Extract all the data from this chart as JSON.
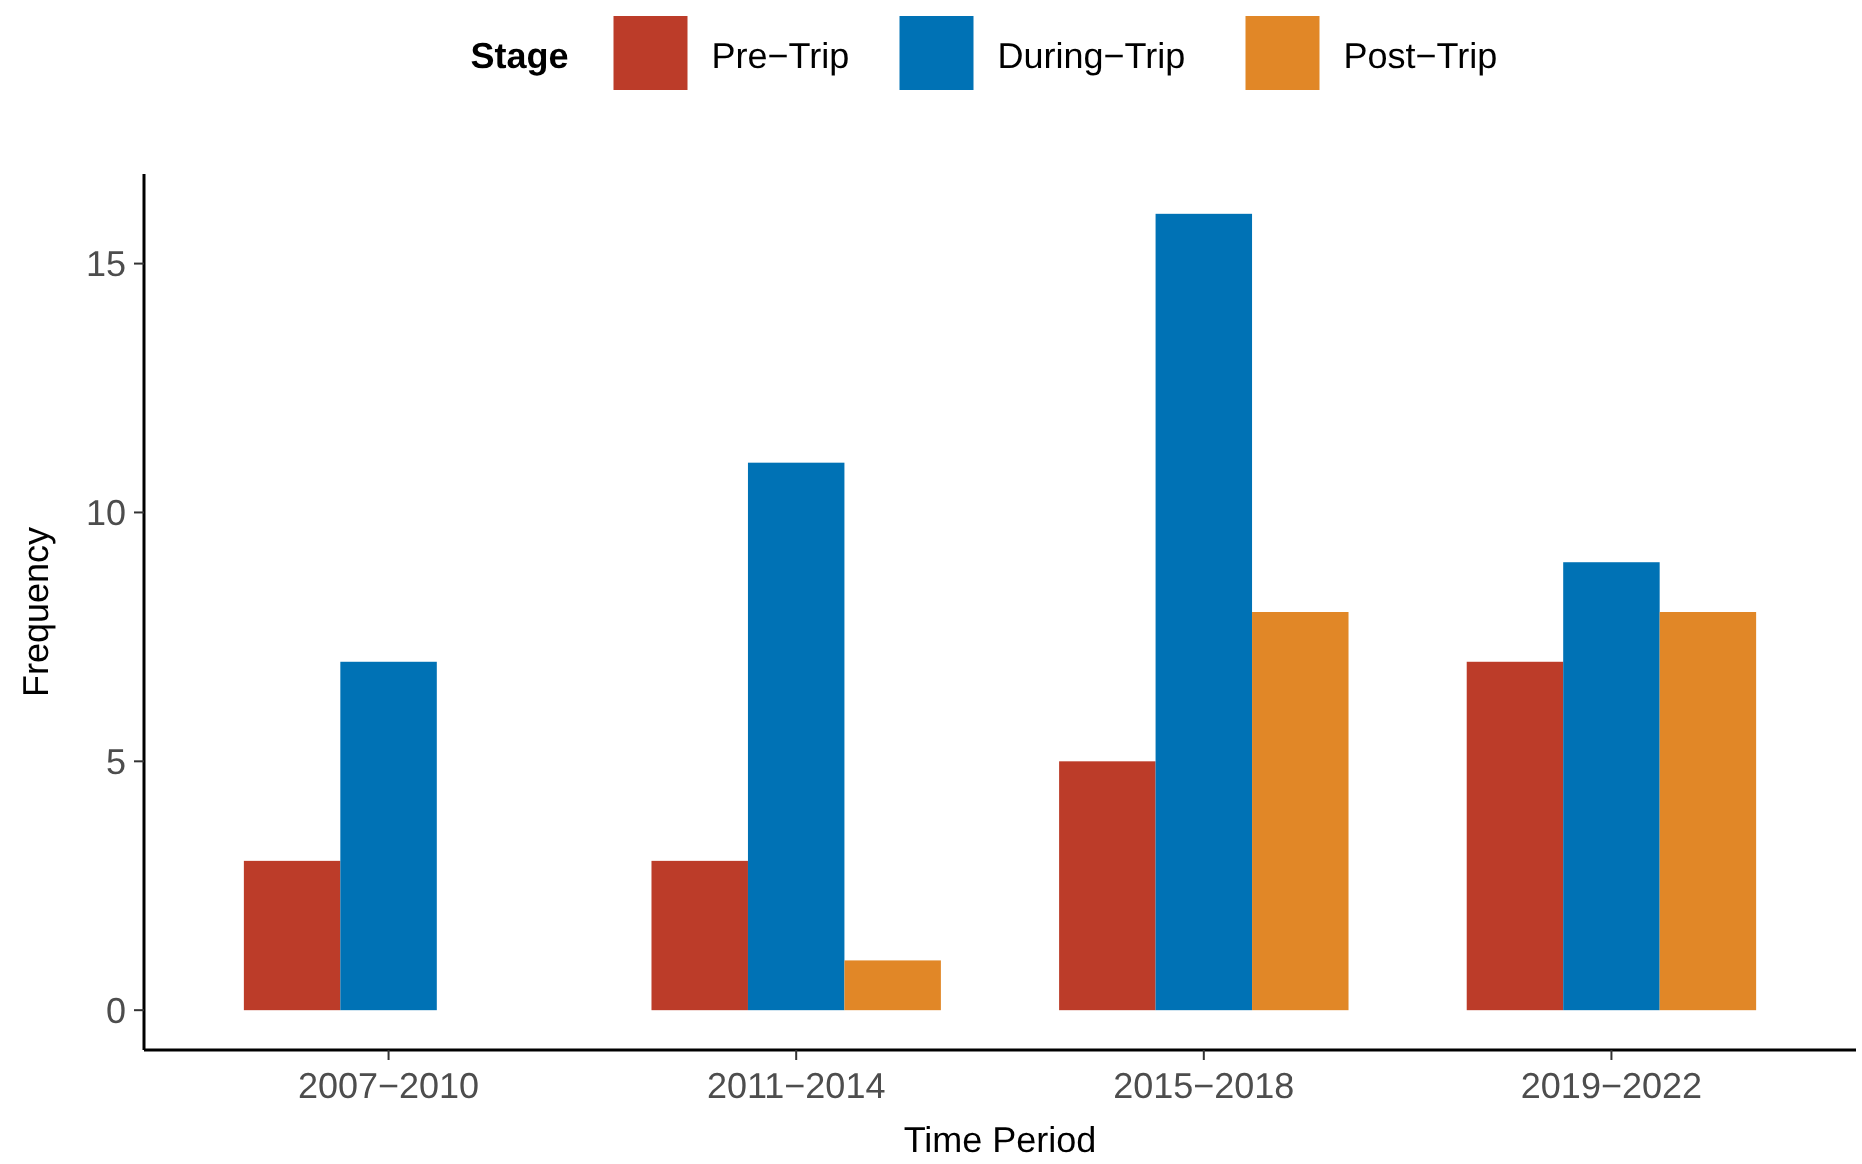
{
  "chart_data": {
    "type": "bar",
    "xlabel": "Time Period",
    "ylabel": "Frequency",
    "legend_title": "Stage",
    "legend": "top",
    "grid": false,
    "categories": [
      "2007−2010",
      "2011−2014",
      "2015−2018",
      "2019−2022"
    ],
    "series": [
      {
        "name": "Pre−Trip",
        "color": "#bc3c29",
        "values": [
          3,
          3,
          5,
          7
        ]
      },
      {
        "name": "During−Trip",
        "color": "#0072b5",
        "values": [
          7,
          11,
          16,
          9
        ]
      },
      {
        "name": "Post−Trip",
        "color": "#e18727",
        "values": [
          null,
          1,
          8,
          8
        ]
      }
    ],
    "ylim": [
      -0.8,
      16.8
    ],
    "yticks": [
      0,
      5,
      10,
      15
    ]
  }
}
